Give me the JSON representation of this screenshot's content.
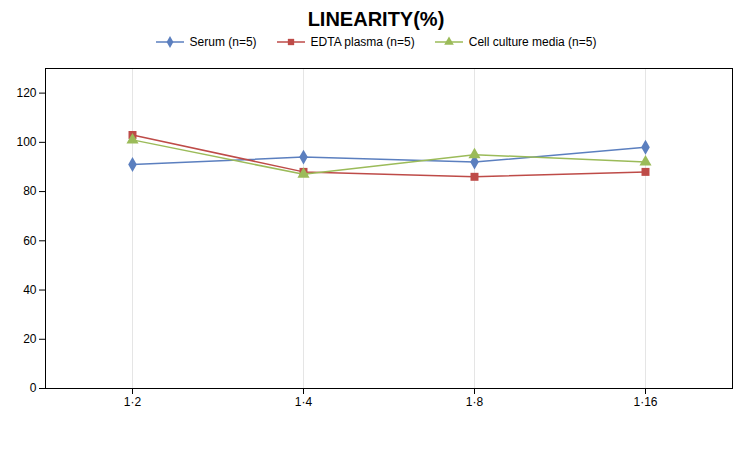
{
  "chart_data": {
    "type": "line",
    "title": "LINEARITY(%)",
    "categories": [
      "1·2",
      "1·4",
      "1·8",
      "1·16"
    ],
    "series": [
      {
        "name": "Serum (n=5)",
        "color": "#5B7FBF",
        "marker": "diamond",
        "values": [
          91,
          94,
          92,
          98
        ]
      },
      {
        "name": "EDTA plasma (n=5)",
        "color": "#BE4B48",
        "marker": "square",
        "values": [
          103,
          88,
          86,
          88
        ]
      },
      {
        "name": "Cell culture media (n=5)",
        "color": "#9BBB59",
        "marker": "triangle",
        "values": [
          101,
          87,
          95,
          92
        ]
      }
    ],
    "ylim": [
      0,
      130
    ],
    "yticks": [
      0,
      20,
      40,
      60,
      80,
      100,
      120
    ],
    "grid": "x",
    "legend": "top"
  }
}
